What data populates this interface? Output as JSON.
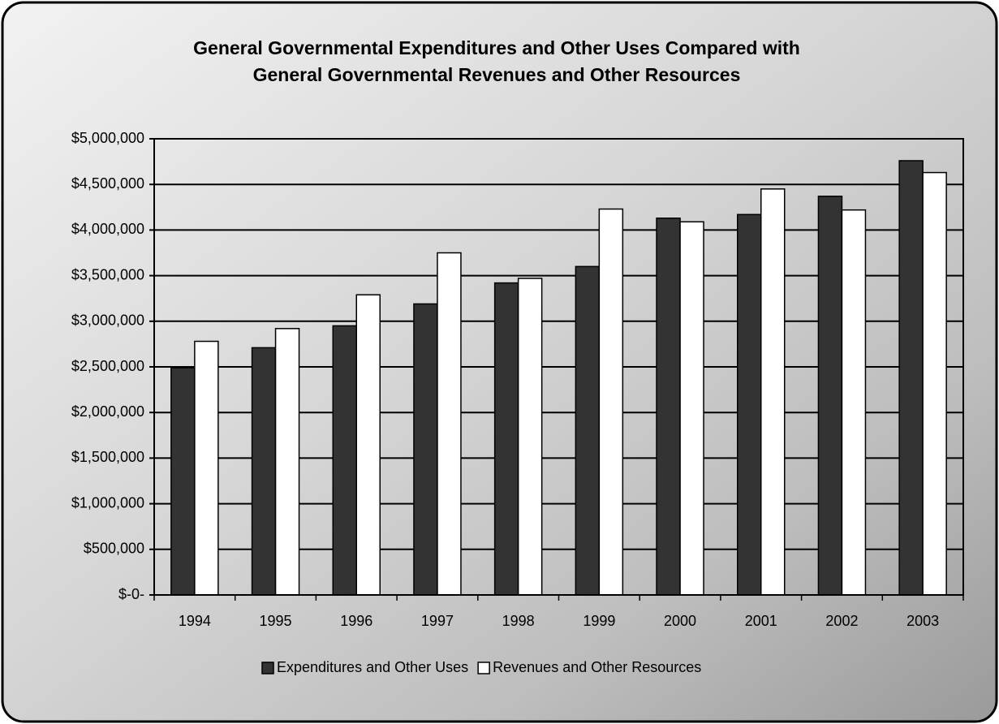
{
  "chart_data": {
    "type": "bar",
    "title": "General Governmental Expenditures and Other Uses Compared with",
    "subtitle": "General Governmental Revenues and Other Resources",
    "categories": [
      "1994",
      "1995",
      "1996",
      "1997",
      "1998",
      "1999",
      "2000",
      "2001",
      "2002",
      "2003"
    ],
    "series": [
      {
        "name": "Expenditures and Other Uses",
        "color": "#333333",
        "values": [
          2490000,
          2710000,
          2950000,
          3190000,
          3420000,
          3600000,
          4130000,
          4170000,
          4370000,
          4760000
        ]
      },
      {
        "name": "Revenues and Other Resources",
        "color": "#ffffff",
        "values": [
          2780000,
          2920000,
          3290000,
          3750000,
          3470000,
          4230000,
          4090000,
          4450000,
          4220000,
          4630000
        ]
      }
    ],
    "ylim": [
      0,
      5000000
    ],
    "yticks": [
      {
        "value": 0,
        "label": "$-0-"
      },
      {
        "value": 500000,
        "label": "$500,000"
      },
      {
        "value": 1000000,
        "label": "$1,000,000"
      },
      {
        "value": 1500000,
        "label": "$1,500,000"
      },
      {
        "value": 2000000,
        "label": "$2,000,000"
      },
      {
        "value": 2500000,
        "label": "$2,500,000"
      },
      {
        "value": 3000000,
        "label": "$3,000,000"
      },
      {
        "value": 3500000,
        "label": "$3,500,000"
      },
      {
        "value": 4000000,
        "label": "$4,000,000"
      },
      {
        "value": 4500000,
        "label": "$4,500,000"
      },
      {
        "value": 5000000,
        "label": "$5,000,000"
      }
    ],
    "grid": true,
    "legend": "bottom"
  }
}
